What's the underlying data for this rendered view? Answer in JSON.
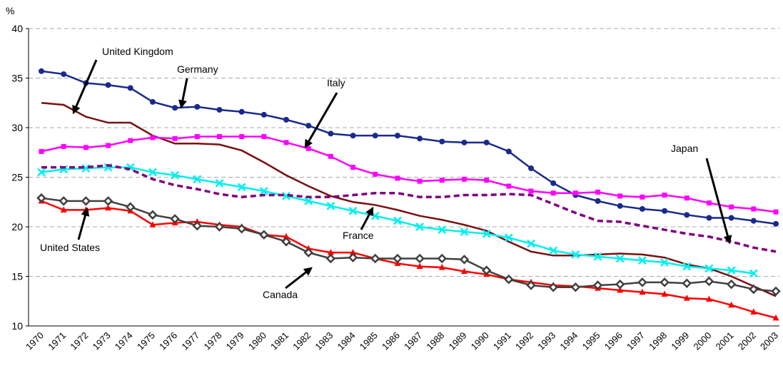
{
  "chart_data": {
    "type": "line",
    "y_label": "%",
    "categories": [
      "1970",
      "1971",
      "1972",
      "1973",
      "1974",
      "1975",
      "1976",
      "1977",
      "1978",
      "1979",
      "1980",
      "1981",
      "1982",
      "1983",
      "1984",
      "1985",
      "1986",
      "1987",
      "1988",
      "1989",
      "1990",
      "1991",
      "1992",
      "1993",
      "1994",
      "1995",
      "1996",
      "1997",
      "1998",
      "1999",
      "2000",
      "2001",
      "2002",
      "2003"
    ],
    "ylim": [
      10,
      40
    ],
    "yticks": [
      10,
      15,
      20,
      25,
      30,
      35,
      40
    ],
    "grid": true,
    "series": [
      {
        "name": "Germany",
        "color": "#1a2a8c",
        "marker": "circle",
        "values": [
          35.7,
          35.4,
          34.5,
          34.3,
          34.0,
          32.6,
          32.0,
          32.1,
          31.8,
          31.6,
          31.3,
          30.8,
          30.2,
          29.4,
          29.2,
          29.2,
          29.2,
          28.9,
          28.6,
          28.5,
          28.5,
          27.6,
          25.9,
          24.4,
          23.2,
          22.6,
          22.1,
          21.8,
          21.6,
          21.2,
          20.9,
          20.9,
          20.6,
          20.3
        ]
      },
      {
        "name": "United Kingdom",
        "color": "#7a1010",
        "values": [
          32.5,
          32.3,
          31.1,
          30.5,
          30.5,
          29.2,
          28.4,
          28.4,
          28.3,
          27.7,
          26.5,
          25.2,
          24.1,
          23.1,
          22.5,
          22.2,
          21.7,
          21.1,
          20.7,
          20.2,
          19.6,
          18.5,
          17.5,
          17.1,
          17.1,
          17.2,
          17.3,
          17.2,
          16.9,
          16.2,
          15.8,
          15.0,
          14.0,
          13.0
        ]
      },
      {
        "name": "Italy",
        "color": "#ff00ff",
        "marker": "square",
        "values": [
          27.6,
          28.1,
          28.0,
          28.2,
          28.7,
          29.0,
          28.9,
          29.1,
          29.1,
          29.1,
          29.1,
          28.5,
          27.9,
          27.1,
          26.0,
          25.3,
          24.9,
          24.6,
          24.7,
          24.8,
          24.7,
          24.1,
          23.6,
          23.4,
          23.4,
          23.5,
          23.1,
          23.0,
          23.2,
          22.9,
          22.4,
          22.0,
          21.8,
          21.5
        ]
      },
      {
        "name": "France",
        "color": "#00f0f0",
        "marker": "x",
        "values": [
          25.5,
          25.8,
          25.9,
          26.0,
          26.0,
          25.5,
          25.2,
          24.8,
          24.4,
          24.0,
          23.6,
          23.1,
          22.6,
          22.1,
          21.6,
          21.1,
          20.6,
          20.0,
          19.7,
          19.5,
          19.3,
          18.9,
          18.3,
          17.6,
          17.2,
          17.0,
          16.8,
          16.6,
          16.4,
          16.0,
          15.8,
          15.6,
          15.3,
          null
        ]
      },
      {
        "name": "Japan",
        "color": "#800080",
        "dashed": true,
        "values": [
          26.0,
          26.0,
          26.0,
          26.2,
          25.8,
          24.8,
          24.2,
          23.8,
          23.3,
          23.0,
          23.2,
          23.2,
          23.0,
          23.0,
          23.2,
          23.4,
          23.4,
          23.0,
          23.0,
          23.2,
          23.2,
          23.3,
          23.2,
          22.3,
          21.4,
          20.6,
          20.5,
          20.1,
          19.7,
          19.3,
          19.0,
          18.5,
          17.9,
          17.5
        ]
      },
      {
        "name": "United States",
        "color": "#ff0000",
        "marker": "triangle",
        "values": [
          22.6,
          21.7,
          21.7,
          21.9,
          21.6,
          20.2,
          20.4,
          20.5,
          20.2,
          20.0,
          19.2,
          19.0,
          17.8,
          17.4,
          17.4,
          16.8,
          16.3,
          16.0,
          15.9,
          15.5,
          15.2,
          14.7,
          14.4,
          14.1,
          14.0,
          13.8,
          13.6,
          13.4,
          13.2,
          12.8,
          12.7,
          12.1,
          11.4,
          10.8
        ]
      },
      {
        "name": "Canada",
        "color": "#404040",
        "marker": "diamond",
        "values": [
          22.9,
          22.6,
          22.6,
          22.6,
          22.0,
          21.2,
          20.8,
          20.1,
          20.0,
          19.8,
          19.2,
          18.5,
          17.4,
          16.8,
          16.9,
          16.8,
          16.8,
          16.8,
          16.8,
          16.7,
          15.6,
          14.7,
          14.1,
          13.9,
          13.9,
          14.1,
          14.2,
          14.4,
          14.4,
          14.3,
          14.5,
          14.2,
          13.7,
          13.5
        ]
      }
    ]
  }
}
